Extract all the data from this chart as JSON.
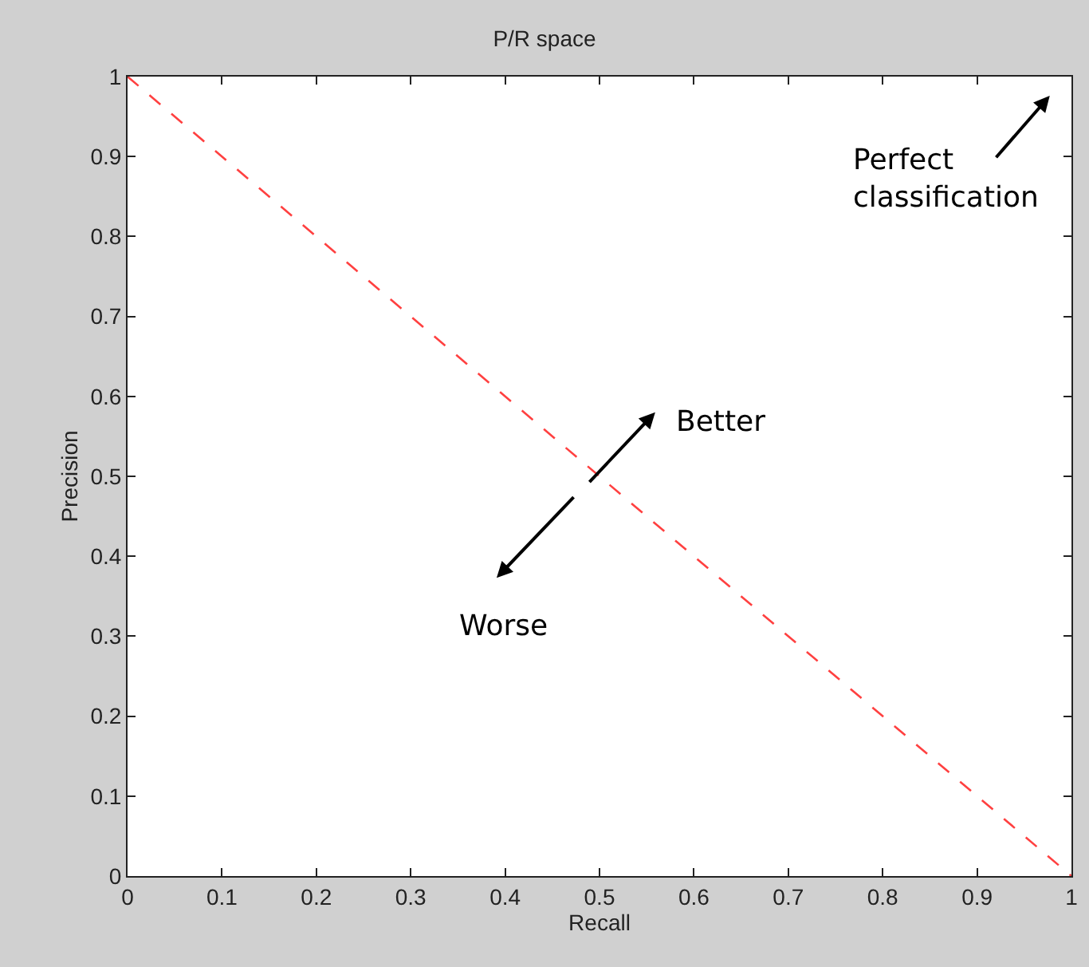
{
  "chart_data": {
    "type": "line",
    "title": "P/R space",
    "xlabel": "Recall",
    "ylabel": "Precision",
    "x": [
      0,
      1
    ],
    "series": [
      {
        "color": "#ff4040",
        "values": [
          1,
          0
        ]
      }
    ],
    "xlim": [
      0,
      1
    ],
    "ylim": [
      0,
      1
    ],
    "xticks": [
      0,
      0.1,
      0.2,
      0.3,
      0.4,
      0.5,
      0.6,
      0.7,
      0.8,
      0.9,
      1
    ],
    "yticks": [
      0,
      0.1,
      0.2,
      0.3,
      0.4,
      0.5,
      0.6,
      0.7,
      0.8,
      0.9,
      1
    ],
    "marker": "none",
    "line_style": "dashed",
    "annotations": [
      "Perfect\nclassification",
      "Better",
      "Worse"
    ]
  }
}
